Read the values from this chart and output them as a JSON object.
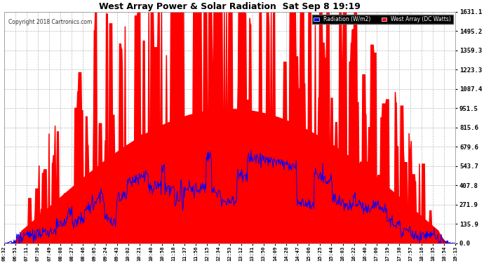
{
  "title": "West Array Power & Solar Radiation  Sat Sep 8 19:19",
  "copyright": "Copyright 2018 Cartronics.com",
  "legend_radiation": "Radiation (W/m2)",
  "legend_west": "West Array (DC Watts)",
  "y_ticks": [
    0.0,
    135.9,
    271.9,
    407.8,
    543.7,
    679.6,
    815.6,
    951.5,
    1087.4,
    1223.3,
    1359.3,
    1495.2,
    1631.1
  ],
  "ymax": 1631.1,
  "ymin": 0.0,
  "bg_color": "#ffffff",
  "plot_bg_color": "#ffffff",
  "grid_color": "#bbbbbb",
  "red_fill_color": "#ff0000",
  "blue_line_color": "#0000ff",
  "x_labels": [
    "06:32",
    "06:51",
    "07:11",
    "07:30",
    "07:49",
    "08:08",
    "08:27",
    "08:46",
    "09:05",
    "09:24",
    "09:43",
    "10:02",
    "10:21",
    "10:40",
    "10:58",
    "11:18",
    "11:37",
    "11:56",
    "12:15",
    "12:34",
    "12:53",
    "13:12",
    "13:31",
    "13:50",
    "14:09",
    "14:28",
    "14:47",
    "15:06",
    "15:25",
    "15:44",
    "16:03",
    "16:22",
    "16:40",
    "17:00",
    "17:19",
    "17:38",
    "17:57",
    "18:16",
    "18:35",
    "18:54",
    "19:13"
  ],
  "n_points": 820
}
